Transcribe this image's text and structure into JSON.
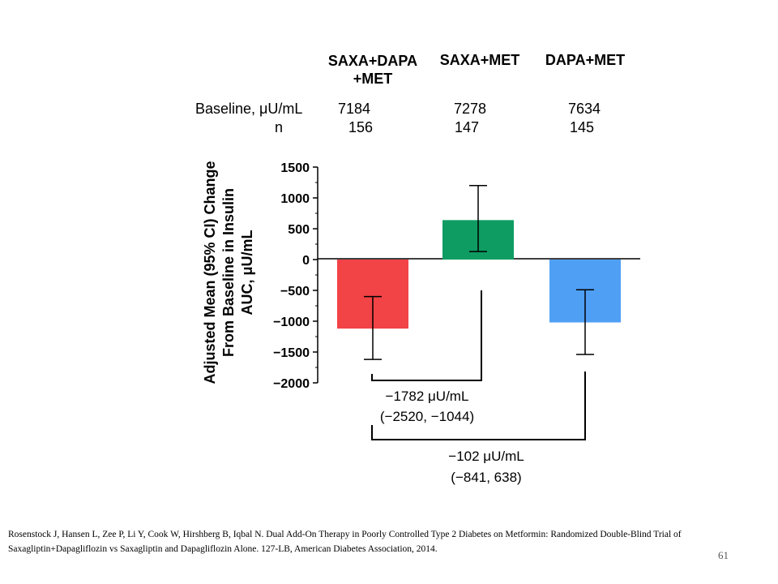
{
  "groups": [
    {
      "label_line1": "SAXA+DAPA",
      "label_line2": "+MET",
      "baseline": "7184",
      "n": "156"
    },
    {
      "label_line1": "SAXA+MET",
      "label_line2": "",
      "baseline": "7278",
      "n": "147"
    },
    {
      "label_line1": "DAPA+MET",
      "label_line2": "",
      "baseline": "7634",
      "n": "145"
    }
  ],
  "row_labels": {
    "baseline": "Baseline, μU/mL",
    "n": "n"
  },
  "y_axis_title": [
    "Adjusted Mean (95% CI) Change",
    "From Baseline in Insulin",
    "AUC, μU/mL"
  ],
  "comparisons": [
    {
      "value": "−1782 μU/mL",
      "ci": "(−2520, −1044)"
    },
    {
      "value": "−102 μU/mL",
      "ci": "(−841, 638)"
    }
  ],
  "chart_data": {
    "type": "bar",
    "categories": [
      "SAXA+DAPA +MET",
      "SAXA+MET",
      "DAPA+MET"
    ],
    "values": [
      -1120,
      640,
      -1020
    ],
    "ci_low": [
      -1620,
      130,
      -1540
    ],
    "ci_high": [
      -600,
      1200,
      -490
    ],
    "colors": [
      "#f24346",
      "#0e9c63",
      "#4f9ff5"
    ],
    "ylim": [
      -2000,
      1500
    ],
    "yticks": [
      1500,
      1000,
      500,
      0,
      -500,
      -1000,
      -1500,
      -2000
    ],
    "ytick_labels": [
      "1500",
      "1000",
      "500",
      "0",
      "−500",
      "−1000",
      "−1500",
      "−2000"
    ]
  },
  "reference": "Rosenstock J, Hansen L, Zee P, Li Y, Cook W, Hirshberg B, Iqbal N. Dual Add-On Therapy in Poorly Controlled Type 2 Diabetes on Metformin: Randomized Double-Blind Trial of Saxagliptin+Dapagliflozin vs Saxagliptin and Dapagliflozin Alone. 127-LB, American Diabetes Association, 2014.",
  "page_number": "61"
}
